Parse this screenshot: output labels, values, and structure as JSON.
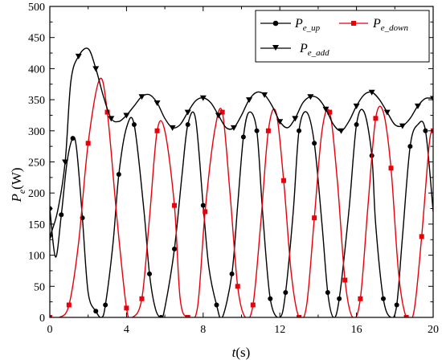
{
  "chart_data": {
    "type": "line",
    "title": "",
    "xlabel": {
      "italic": "t",
      "rest": "(s)"
    },
    "ylabel": {
      "main": "P",
      "sub": "e",
      "rest": "(W)"
    },
    "xlim": [
      0,
      20
    ],
    "ylim": [
      0,
      500
    ],
    "xticks": [
      0,
      4,
      8,
      12,
      16,
      20
    ],
    "yticks": [
      0,
      50,
      100,
      150,
      200,
      250,
      300,
      350,
      400,
      450,
      500
    ],
    "grid": false,
    "legend_position": "top-right",
    "series": [
      {
        "name": "P_e_up",
        "legend_main": "P",
        "legend_sub": "e_up",
        "color": "#000000",
        "marker": "circle",
        "x": [
          0,
          0.3,
          0.6,
          0.9,
          1.2,
          1.4,
          1.7,
          2.0,
          2.4,
          2.7,
          2.9,
          3.3,
          3.6,
          4.0,
          4.4,
          4.9,
          5.2,
          5.5,
          5.8,
          6.0,
          6.5,
          6.9,
          7.2,
          7.6,
          8.0,
          8.3,
          8.7,
          9.0,
          9.5,
          9.8,
          10.1,
          10.4,
          10.8,
          11.1,
          11.5,
          12.0,
          12.3,
          12.7,
          13.0,
          13.4,
          13.8,
          14.2,
          14.5,
          14.8,
          15.1,
          15.6,
          16.0,
          16.4,
          16.8,
          17.0,
          17.4,
          17.8,
          18.1,
          18.4,
          18.8,
          19.2,
          19.6,
          20.0
        ],
        "y": [
          175,
          97,
          165,
          250,
          288,
          270,
          160,
          40,
          10,
          0,
          20,
          120,
          230,
          305,
          310,
          175,
          70,
          15,
          0,
          15,
          110,
          230,
          310,
          320,
          180,
          80,
          20,
          0,
          70,
          180,
          290,
          330,
          300,
          170,
          30,
          0,
          40,
          170,
          300,
          330,
          280,
          150,
          40,
          0,
          30,
          170,
          310,
          330,
          260,
          150,
          30,
          0,
          20,
          130,
          275,
          310,
          300,
          170
        ]
      },
      {
        "name": "P_e_down",
        "legend_main": "P",
        "legend_sub": "e_down",
        "color": "#e8000b",
        "marker": "square",
        "x": [
          0,
          0.5,
          1.0,
          1.5,
          2.0,
          2.6,
          3.0,
          3.5,
          4.0,
          4.3,
          4.8,
          5.2,
          5.6,
          6.0,
          6.5,
          6.8,
          7.2,
          7.7,
          8.1,
          8.6,
          9.0,
          9.4,
          9.8,
          10.2,
          10.6,
          11.0,
          11.4,
          11.8,
          12.2,
          12.6,
          13.0,
          13.4,
          13.8,
          14.2,
          14.6,
          15.0,
          15.4,
          15.8,
          16.2,
          16.6,
          17.0,
          17.4,
          17.8,
          18.2,
          18.6,
          19.0,
          19.4,
          19.8,
          20.0
        ],
        "y": [
          0,
          0,
          20,
          120,
          280,
          383,
          330,
          160,
          15,
          0,
          30,
          160,
          300,
          300,
          180,
          30,
          0,
          15,
          170,
          300,
          330,
          200,
          50,
          0,
          20,
          150,
          300,
          330,
          220,
          70,
          0,
          20,
          160,
          300,
          330,
          220,
          60,
          0,
          30,
          180,
          320,
          330,
          240,
          70,
          0,
          10,
          130,
          280,
          300
        ]
      },
      {
        "name": "P_e_add",
        "legend_main": "P",
        "legend_sub": "e_add",
        "color": "#000000",
        "marker": "triangle-down",
        "x": [
          0,
          0.4,
          0.8,
          1.1,
          1.5,
          2.0,
          2.4,
          2.8,
          3.2,
          3.6,
          4.0,
          4.4,
          4.8,
          5.2,
          5.6,
          6.0,
          6.4,
          6.8,
          7.2,
          7.6,
          8.0,
          8.4,
          8.8,
          9.2,
          9.6,
          10.0,
          10.4,
          10.8,
          11.2,
          11.6,
          12.0,
          12.4,
          12.8,
          13.2,
          13.6,
          14.0,
          14.4,
          14.8,
          15.2,
          15.6,
          16.0,
          16.4,
          16.8,
          17.2,
          17.6,
          18.0,
          18.4,
          18.8,
          19.2,
          19.6,
          20.0
        ],
        "y": [
          130,
          170,
          250,
          380,
          420,
          432,
          400,
          355,
          320,
          315,
          325,
          340,
          355,
          358,
          345,
          320,
          305,
          310,
          330,
          348,
          353,
          345,
          325,
          305,
          305,
          325,
          350,
          362,
          358,
          340,
          315,
          305,
          320,
          345,
          355,
          352,
          335,
          310,
          300,
          315,
          340,
          358,
          362,
          350,
          330,
          310,
          308,
          320,
          340,
          352,
          352
        ]
      }
    ]
  }
}
